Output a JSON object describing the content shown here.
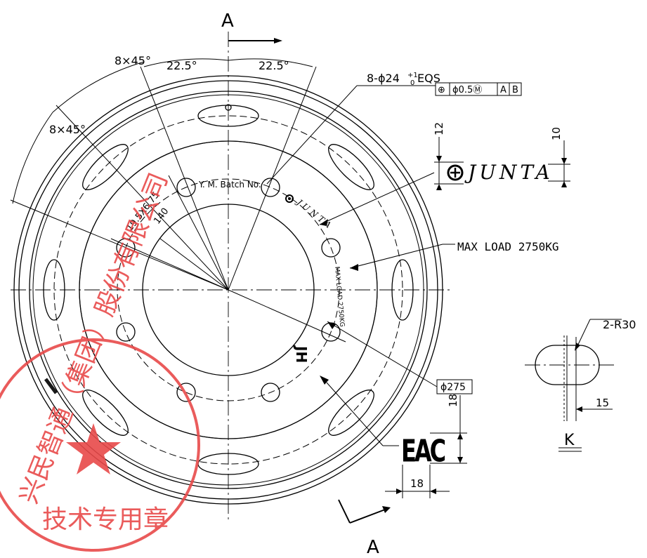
{
  "section": {
    "top": "A",
    "bottom": "A"
  },
  "dimensions": {
    "angle_left": "22.5°",
    "angle_right": "22.5°",
    "arc_top": "8×45°",
    "arc_left": "8×45°",
    "hole_spec_prefix": "8-ϕ24",
    "hole_spec_tol_upper": "+1",
    "hole_spec_tol_lower": "0",
    "hole_spec_suffix": "EQS",
    "fcf_position": "⊕",
    "fcf_tol": "ϕ0.5Ⓜ",
    "fcf_datum_a": "A",
    "fcf_datum_b": "B",
    "text_height_12": "12",
    "text_height_10": "10",
    "max_load": "MAX LOAD 2750KG",
    "bore": "ϕ275",
    "eac_height": "18",
    "eac_width": "18",
    "slot_radius": "2-R30",
    "slot_width": "15",
    "detail_label": "K"
  },
  "wheel_markings": {
    "batch": "Y. M. Batch No.",
    "size_line1": "19.5X6.75",
    "size_line2": "140",
    "brand_curved": "JUNTA",
    "load_curved": "MAX LOAD 2750KG",
    "mark_code": "JH"
  },
  "logo": {
    "brand": "JUNTA",
    "eac": "EAC"
  },
  "stamp": {
    "outer_text": "兴民智通（集团）股份有限公司",
    "inner_text": "技术专用章",
    "color": "#e84a4a"
  }
}
